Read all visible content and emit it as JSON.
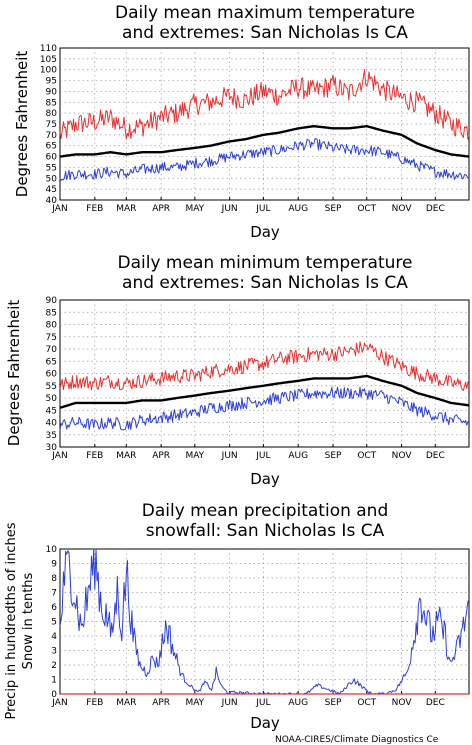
{
  "footer": {
    "credit": "NOAA-CIRES/Climate Diagnostics Ce"
  },
  "colors": {
    "mean": "#000000",
    "max": "#e83030",
    "min": "#2c3fd6",
    "snow": "#e83030",
    "grid": "#9a9a9a"
  },
  "chart_data": [
    {
      "type": "line",
      "title_lines": [
        "Daily mean maximum temperature",
        "and extremes: San Nicholas Is CA"
      ],
      "xlabel": "Day",
      "ylabel": "Degrees Fahrenheit",
      "months": [
        "JAN",
        "FEB",
        "MAR",
        "APR",
        "MAY",
        "JUN",
        "JUL",
        "AUG",
        "SEP",
        "OCT",
        "NOV",
        "DEC"
      ],
      "ylim": [
        40,
        110
      ],
      "yticks": [
        40,
        45,
        50,
        55,
        60,
        65,
        70,
        75,
        80,
        85,
        90,
        95,
        100,
        105,
        110
      ],
      "grid": true,
      "x": [
        1,
        15,
        32,
        46,
        60,
        74,
        91,
        105,
        121,
        135,
        152,
        166,
        182,
        196,
        213,
        227,
        244,
        258,
        274,
        288,
        305,
        319,
        335,
        349,
        365
      ],
      "series": [
        {
          "role": "high",
          "values": [
            70,
            75,
            76,
            78,
            73,
            74,
            78,
            80,
            84,
            85,
            88,
            86,
            90,
            88,
            92,
            90,
            93,
            89,
            97,
            91,
            87,
            85,
            80,
            75,
            72
          ]
        },
        {
          "role": "mean",
          "values": [
            60,
            61,
            61,
            62,
            61,
            62,
            62,
            63,
            64,
            65,
            67,
            68,
            70,
            71,
            73,
            74,
            73,
            73,
            74,
            72,
            70,
            66,
            63,
            61,
            60
          ]
        },
        {
          "role": "low",
          "values": [
            51,
            52,
            52,
            53,
            52,
            54,
            55,
            55,
            57,
            58,
            60,
            61,
            62,
            63,
            65,
            66,
            64,
            63,
            63,
            62,
            59,
            56,
            53,
            52,
            51
          ]
        }
      ]
    },
    {
      "type": "line",
      "title_lines": [
        "Daily mean minimum temperature",
        "and extremes: San Nicholas Is CA"
      ],
      "xlabel": "Day",
      "ylabel": "Degrees Fahrenheit",
      "months": [
        "JAN",
        "FEB",
        "MAR",
        "APR",
        "MAY",
        "JUN",
        "JUL",
        "AUG",
        "SEP",
        "OCT",
        "NOV",
        "DEC"
      ],
      "ylim": [
        30,
        90
      ],
      "yticks": [
        30,
        35,
        40,
        45,
        50,
        55,
        60,
        65,
        70,
        75,
        80,
        85,
        90
      ],
      "grid": true,
      "x": [
        1,
        15,
        32,
        46,
        60,
        74,
        91,
        105,
        121,
        135,
        152,
        166,
        182,
        196,
        213,
        227,
        244,
        258,
        274,
        288,
        305,
        319,
        335,
        349,
        365
      ],
      "series": [
        {
          "role": "high",
          "values": [
            55,
            57,
            56,
            57,
            56,
            57,
            58,
            59,
            59,
            61,
            62,
            63,
            64,
            66,
            67,
            68,
            68,
            69,
            71,
            67,
            63,
            60,
            58,
            56,
            55
          ]
        },
        {
          "role": "mean",
          "values": [
            46,
            48,
            48,
            48,
            48,
            49,
            49,
            50,
            51,
            52,
            53,
            54,
            55,
            56,
            57,
            58,
            58,
            58,
            59,
            57,
            55,
            52,
            50,
            48,
            47
          ]
        },
        {
          "role": "low",
          "values": [
            39,
            40,
            39,
            40,
            39,
            41,
            42,
            43,
            44,
            46,
            47,
            48,
            49,
            50,
            51,
            52,
            52,
            52,
            52,
            51,
            48,
            45,
            43,
            41,
            40
          ]
        }
      ]
    },
    {
      "type": "line",
      "title_lines": [
        "Daily mean precipitation and",
        "snowfall: San Nicholas Is CA"
      ],
      "xlabel": "Day",
      "ylabel_lines": [
        "Precip in hundredths of inches",
        "Snow in tenths"
      ],
      "months": [
        "JAN",
        "FEB",
        "MAR",
        "APR",
        "MAY",
        "JUN",
        "JUL",
        "AUG",
        "SEP",
        "OCT",
        "NOV",
        "DEC"
      ],
      "ylim": [
        0,
        10
      ],
      "yticks": [
        0,
        1,
        2,
        3,
        4,
        5,
        6,
        7,
        8,
        9,
        10
      ],
      "grid": true,
      "x": [
        1,
        5,
        10,
        14,
        20,
        25,
        32,
        38,
        42,
        47,
        52,
        56,
        60,
        66,
        72,
        78,
        84,
        88,
        92,
        96,
        102,
        110,
        118,
        124,
        130,
        136,
        140,
        145,
        150,
        160,
        170,
        180,
        195,
        210,
        220,
        230,
        240,
        250,
        262,
        270,
        276,
        280,
        290,
        300,
        310,
        316,
        322,
        326,
        332,
        338,
        344,
        348,
        354,
        360,
        365
      ],
      "series": [
        {
          "role": "precip",
          "values": [
            4.5,
            8.0,
            9.0,
            7.0,
            4.5,
            6.5,
            9.6,
            6.0,
            5.5,
            4.0,
            7.0,
            4.5,
            8.5,
            4.0,
            2.0,
            1.5,
            2.5,
            2.0,
            3.5,
            4.8,
            3.0,
            1.2,
            0.5,
            0.1,
            0.8,
            0.3,
            1.5,
            0.5,
            0.1,
            0.1,
            0.05,
            0.0,
            0.0,
            0.0,
            0.0,
            0.6,
            0.3,
            0.0,
            1.0,
            0.5,
            0.1,
            0.0,
            0.0,
            0.3,
            1.5,
            4.0,
            6.8,
            5.5,
            4.0,
            5.0,
            4.0,
            2.0,
            3.0,
            4.5,
            6.5
          ]
        },
        {
          "role": "snow",
          "values": [
            0,
            0,
            0,
            0,
            0,
            0,
            0,
            0,
            0,
            0,
            0,
            0,
            0,
            0,
            0,
            0,
            0,
            0,
            0,
            0,
            0,
            0,
            0,
            0,
            0,
            0,
            0,
            0,
            0,
            0,
            0,
            0,
            0,
            0,
            0,
            0,
            0,
            0,
            0,
            0,
            0,
            0,
            0,
            0,
            0,
            0,
            0,
            0,
            0,
            0,
            0,
            0,
            0,
            0,
            0
          ]
        }
      ]
    }
  ]
}
